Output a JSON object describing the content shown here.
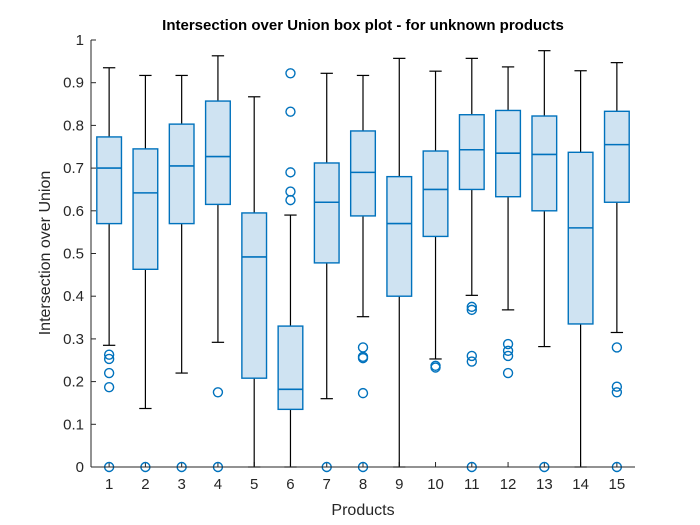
{
  "chart_data": {
    "type": "boxplot",
    "title": "Intersection over Union box plot -  for unknown products",
    "xlabel": "Products",
    "ylabel": "Intersection over Union",
    "ylim": [
      0,
      1
    ],
    "yticks": [
      0,
      0.1,
      0.2,
      0.3,
      0.4,
      0.5,
      0.6,
      0.7,
      0.8,
      0.9,
      1
    ],
    "ytick_labels": [
      "0",
      "0.1",
      "0.2",
      "0.3",
      "0.4",
      "0.5",
      "0.6",
      "0.7",
      "0.8",
      "0.9",
      "1"
    ],
    "categories": [
      "1",
      "2",
      "3",
      "4",
      "5",
      "6",
      "7",
      "8",
      "9",
      "10",
      "11",
      "12",
      "13",
      "14",
      "15"
    ],
    "grid": false,
    "colors": {
      "box_edge": "#0072BD",
      "box_fill": "#CFE3F2",
      "whisker": "#000000",
      "axis": "#262626"
    },
    "boxes": [
      {
        "category": "1",
        "whisker_low": 0.285,
        "q1": 0.57,
        "median": 0.7,
        "q3": 0.773,
        "whisker_high": 0.935,
        "outliers": [
          0.263,
          0.253,
          0.22,
          0.187,
          0.0
        ]
      },
      {
        "category": "2",
        "whisker_low": 0.137,
        "q1": 0.463,
        "median": 0.642,
        "q3": 0.745,
        "whisker_high": 0.917,
        "outliers": [
          0.0
        ]
      },
      {
        "category": "3",
        "whisker_low": 0.22,
        "q1": 0.57,
        "median": 0.705,
        "q3": 0.803,
        "whisker_high": 0.917,
        "outliers": [
          0.0
        ]
      },
      {
        "category": "4",
        "whisker_low": 0.292,
        "q1": 0.615,
        "median": 0.727,
        "q3": 0.857,
        "whisker_high": 0.963,
        "outliers": [
          0.175,
          0.0
        ]
      },
      {
        "category": "5",
        "whisker_low": 0.0,
        "q1": 0.208,
        "median": 0.492,
        "q3": 0.595,
        "whisker_high": 0.867,
        "outliers": []
      },
      {
        "category": "6",
        "whisker_low": 0.0,
        "q1": 0.135,
        "median": 0.182,
        "q3": 0.33,
        "whisker_high": 0.59,
        "outliers": [
          0.922,
          0.832,
          0.69,
          0.645,
          0.625
        ]
      },
      {
        "category": "7",
        "whisker_low": 0.16,
        "q1": 0.478,
        "median": 0.62,
        "q3": 0.712,
        "whisker_high": 0.922,
        "outliers": [
          0.0
        ]
      },
      {
        "category": "8",
        "whisker_low": 0.352,
        "q1": 0.588,
        "median": 0.69,
        "q3": 0.787,
        "whisker_high": 0.917,
        "outliers": [
          0.28,
          0.258,
          0.255,
          0.173,
          0.0
        ]
      },
      {
        "category": "9",
        "whisker_low": 0.0,
        "q1": 0.4,
        "median": 0.57,
        "q3": 0.68,
        "whisker_high": 0.957,
        "outliers": []
      },
      {
        "category": "10",
        "whisker_low": 0.253,
        "q1": 0.54,
        "median": 0.65,
        "q3": 0.74,
        "whisker_high": 0.927,
        "outliers": [
          0.237,
          0.233
        ]
      },
      {
        "category": "11",
        "whisker_low": 0.402,
        "q1": 0.65,
        "median": 0.743,
        "q3": 0.825,
        "whisker_high": 0.957,
        "outliers": [
          0.375,
          0.368,
          0.26,
          0.247,
          0.0
        ]
      },
      {
        "category": "12",
        "whisker_low": 0.368,
        "q1": 0.633,
        "median": 0.735,
        "q3": 0.835,
        "whisker_high": 0.937,
        "outliers": [
          0.288,
          0.272,
          0.26,
          0.22
        ]
      },
      {
        "category": "13",
        "whisker_low": 0.282,
        "q1": 0.6,
        "median": 0.732,
        "q3": 0.822,
        "whisker_high": 0.975,
        "outliers": [
          0.0
        ]
      },
      {
        "category": "14",
        "whisker_low": 0.0,
        "q1": 0.335,
        "median": 0.56,
        "q3": 0.737,
        "whisker_high": 0.928,
        "outliers": []
      },
      {
        "category": "15",
        "whisker_low": 0.315,
        "q1": 0.62,
        "median": 0.755,
        "q3": 0.833,
        "whisker_high": 0.947,
        "outliers": [
          0.28,
          0.188,
          0.175,
          0.0
        ]
      }
    ]
  }
}
